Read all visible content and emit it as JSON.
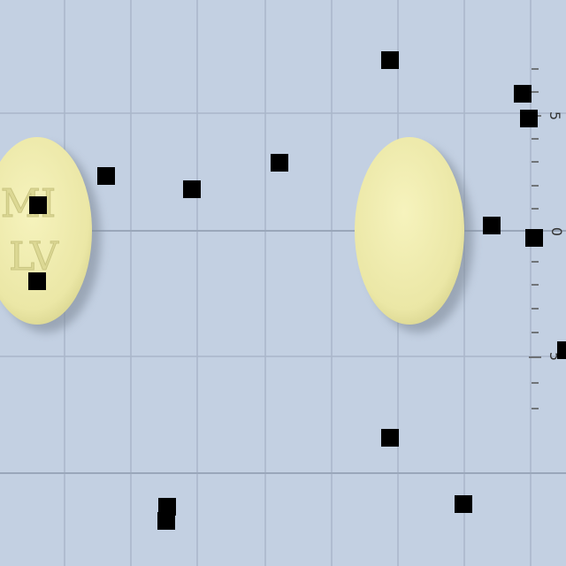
{
  "ruler_labels": [
    "5",
    "0",
    "5"
  ],
  "pill_imprint": [
    "MI",
    "LV"
  ]
}
